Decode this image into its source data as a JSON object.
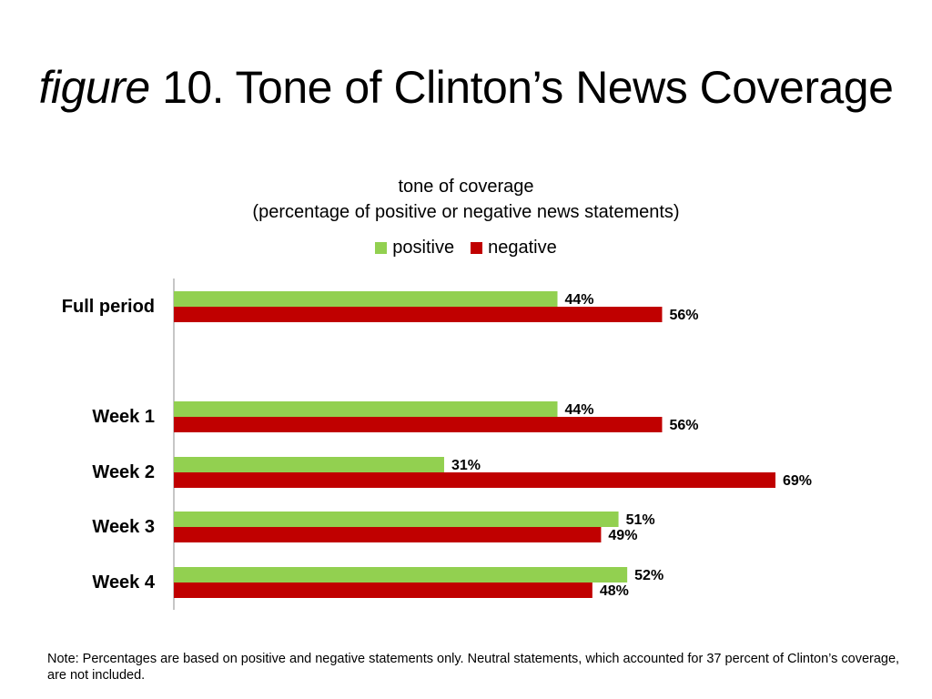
{
  "figure": {
    "prefix": "figure",
    "title": "10. Tone of Clinton’s News Coverage"
  },
  "note": "Note: Percentages are based on positive and negative statements only. Neutral statements, which accounted for 37 percent of Clinton’s coverage, are not included.",
  "chart_data": {
    "type": "bar",
    "orientation": "horizontal",
    "title": "tone of coverage",
    "subtitle": "(percentage of positive or negative news statements)",
    "categories": [
      "Full period",
      "Week 1",
      "Week 2",
      "Week 3",
      "Week 4"
    ],
    "series": [
      {
        "name": "positive",
        "color": "#92d050",
        "values": [
          44,
          44,
          31,
          51,
          52
        ]
      },
      {
        "name": "negative",
        "color": "#c00000",
        "values": [
          56,
          56,
          69,
          49,
          48
        ]
      }
    ],
    "value_suffix": "%",
    "xlim": [
      0,
      69
    ],
    "legend_position": "top",
    "grid": false
  }
}
